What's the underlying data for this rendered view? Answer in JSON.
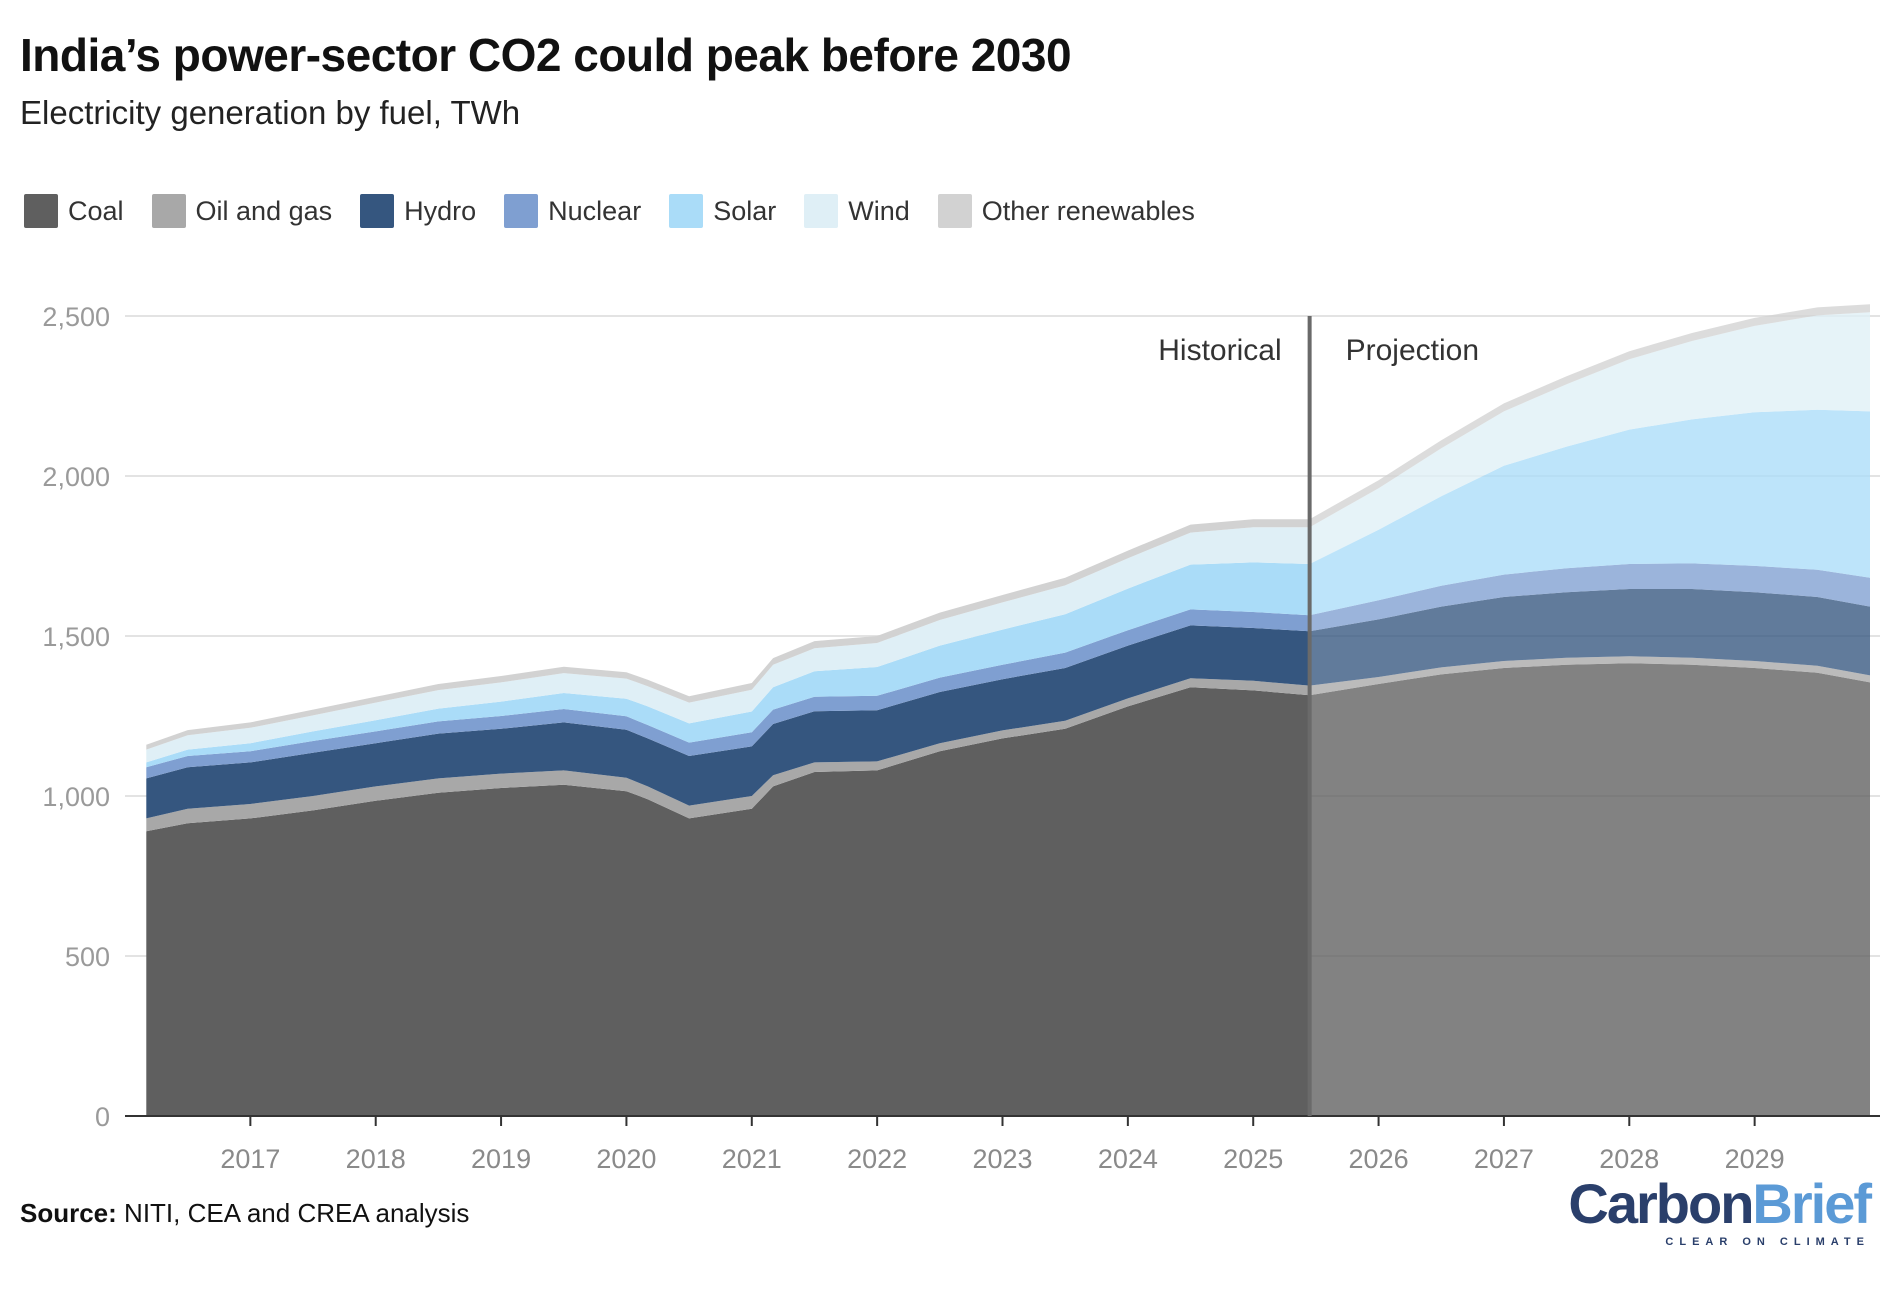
{
  "title": "India’s power-sector CO2 could peak before 2030",
  "subtitle": "Electricity generation by fuel, TWh",
  "source_label": "Source:",
  "source_text": "NITI, CEA and CREA analysis",
  "logo": {
    "carbon": "Carbon",
    "brief": "Brief",
    "tagline": "CLEAR ON CLIMATE"
  },
  "legend": [
    {
      "name": "Coal",
      "color": "#5f5f5f"
    },
    {
      "name": "Oil and gas",
      "color": "#a8a8a8"
    },
    {
      "name": "Hydro",
      "color": "#35567f"
    },
    {
      "name": "Nuclear",
      "color": "#7f9fd1"
    },
    {
      "name": "Solar",
      "color": "#aadcf8"
    },
    {
      "name": "Wind",
      "color": "#dfeff6"
    },
    {
      "name": "Other renewables",
      "color": "#d2d2d2"
    }
  ],
  "chart_data": {
    "type": "area",
    "stacked": true,
    "ylim": [
      0,
      2500
    ],
    "yticks": [
      0,
      500,
      1000,
      1500,
      2000,
      2500
    ],
    "ytick_labels": [
      "0",
      "500",
      "1,000",
      "1,500",
      "2,000",
      "2,500"
    ],
    "xticks": [
      2017,
      2018,
      2019,
      2020,
      2021,
      2022,
      2023,
      2024,
      2025,
      2026,
      2027,
      2028,
      2029
    ],
    "xtick_labels": [
      "2017",
      "2018",
      "2019",
      "2020",
      "2021",
      "2022",
      "2023",
      "2024",
      "2025",
      "2026",
      "2027",
      "2028",
      "2029"
    ],
    "xlim": [
      2016.0,
      2030.0
    ],
    "grid": true,
    "legend_position": "top-left",
    "annotations": {
      "historical": "Historical",
      "projection": "Projection",
      "divider_x": 2025.45
    },
    "x": [
      2016.17,
      2016.5,
      2017.0,
      2017.5,
      2018.0,
      2018.5,
      2019.0,
      2019.5,
      2020.0,
      2020.17,
      2020.5,
      2021.0,
      2021.17,
      2021.5,
      2022.0,
      2022.5,
      2023.0,
      2023.5,
      2024.0,
      2024.5,
      2025.0,
      2025.45,
      2026.0,
      2026.5,
      2027.0,
      2027.5,
      2028.0,
      2028.5,
      2029.0,
      2029.5,
      2029.92
    ],
    "projection_start_index": 21,
    "series": [
      {
        "name": "Coal",
        "values": [
          890,
          915,
          930,
          955,
          985,
          1010,
          1025,
          1035,
          1015,
          990,
          930,
          960,
          1030,
          1075,
          1080,
          1140,
          1180,
          1210,
          1280,
          1340,
          1330,
          1315,
          1350,
          1380,
          1400,
          1410,
          1415,
          1410,
          1400,
          1385,
          1355
        ]
      },
      {
        "name": "Oil and gas",
        "values": [
          40,
          45,
          45,
          45,
          45,
          45,
          45,
          45,
          42,
          40,
          40,
          40,
          35,
          30,
          28,
          25,
          25,
          25,
          25,
          28,
          30,
          30,
          22,
          22,
          22,
          22,
          22,
          22,
          22,
          22,
          22
        ]
      },
      {
        "name": "Hydro",
        "values": [
          125,
          130,
          130,
          135,
          135,
          140,
          140,
          150,
          150,
          150,
          155,
          155,
          160,
          160,
          160,
          160,
          160,
          165,
          165,
          165,
          165,
          170,
          180,
          190,
          200,
          205,
          210,
          215,
          215,
          215,
          215
        ]
      },
      {
        "name": "Nuclear",
        "values": [
          35,
          35,
          35,
          37,
          37,
          38,
          40,
          42,
          42,
          42,
          42,
          44,
          45,
          45,
          45,
          45,
          45,
          48,
          48,
          50,
          50,
          50,
          60,
          65,
          70,
          75,
          78,
          80,
          82,
          85,
          90
        ]
      },
      {
        "name": "Solar",
        "values": [
          15,
          20,
          25,
          30,
          35,
          40,
          45,
          50,
          55,
          58,
          60,
          65,
          70,
          80,
          90,
          100,
          110,
          120,
          130,
          140,
          155,
          160,
          220,
          280,
          340,
          380,
          420,
          450,
          480,
          500,
          520
        ]
      },
      {
        "name": "Wind",
        "values": [
          40,
          45,
          48,
          50,
          55,
          58,
          60,
          62,
          63,
          63,
          65,
          68,
          70,
          72,
          75,
          80,
          85,
          90,
          95,
          100,
          110,
          115,
          130,
          150,
          170,
          195,
          220,
          245,
          270,
          295,
          310
        ]
      },
      {
        "name": "Other renewables",
        "values": [
          15,
          16,
          17,
          18,
          18,
          19,
          20,
          20,
          20,
          20,
          20,
          21,
          21,
          22,
          22,
          23,
          23,
          24,
          24,
          25,
          25,
          25,
          25,
          25,
          25,
          25,
          25,
          25,
          25,
          25,
          25
        ]
      }
    ]
  }
}
